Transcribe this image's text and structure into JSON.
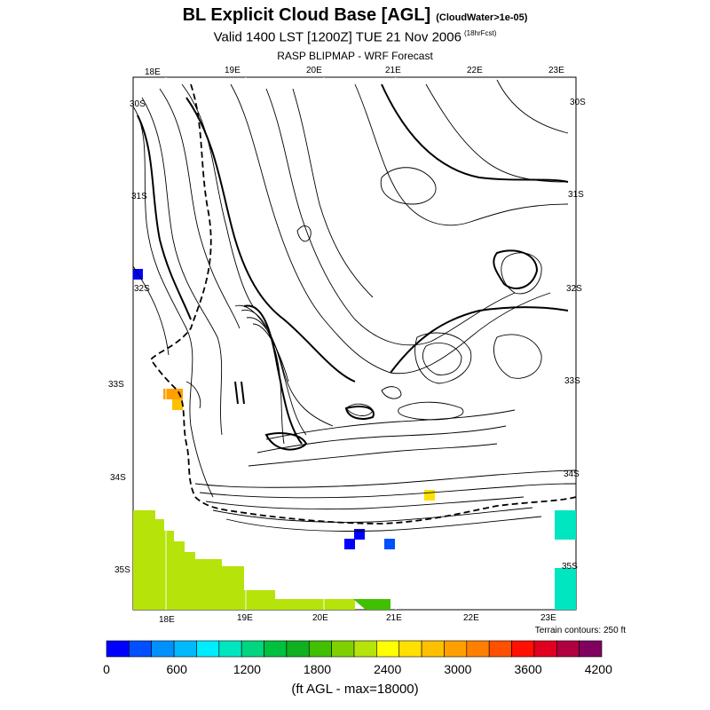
{
  "header": {
    "title": "BL Explicit Cloud Base [AGL]",
    "title_note": "(CloudWater>1e-05)",
    "valid": "Valid 1400 LST [1200Z] TUE 21 Nov 2006",
    "forecast_note": "(18hrFcst)",
    "source": "RASP BLIPMAP - WRF Forecast"
  },
  "map": {
    "lon_labels_top": [
      "18E",
      "19E",
      "20E",
      "21E",
      "22E",
      "23E"
    ],
    "lon_labels_bottom": [
      "18E",
      "19E",
      "20E",
      "21E",
      "22E",
      "23E"
    ],
    "lat_labels_left": [
      "30S",
      "31S",
      "32S",
      "33S",
      "34S",
      "35S"
    ],
    "lat_labels_right": [
      "30S",
      "31S",
      "32S",
      "33S",
      "34S",
      "35S"
    ],
    "terrain_note": "Terrain contours: 250 ft"
  },
  "colorbar": {
    "colors": [
      "#0000ff",
      "#0050ff",
      "#0091ff",
      "#00b9ff",
      "#00ecff",
      "#00e6c0",
      "#00d580",
      "#00c040",
      "#10b020",
      "#40c000",
      "#80d000",
      "#b5e30a",
      "#ffff00",
      "#ffe000",
      "#ffc000",
      "#ffa000",
      "#ff8000",
      "#ff5000",
      "#ff1000",
      "#e00020",
      "#b00040",
      "#800060"
    ],
    "tick_labels": [
      "0",
      "600",
      "1200",
      "1800",
      "2400",
      "3000",
      "3600",
      "4200"
    ],
    "units": "(ft AGL - max=18000)"
  }
}
